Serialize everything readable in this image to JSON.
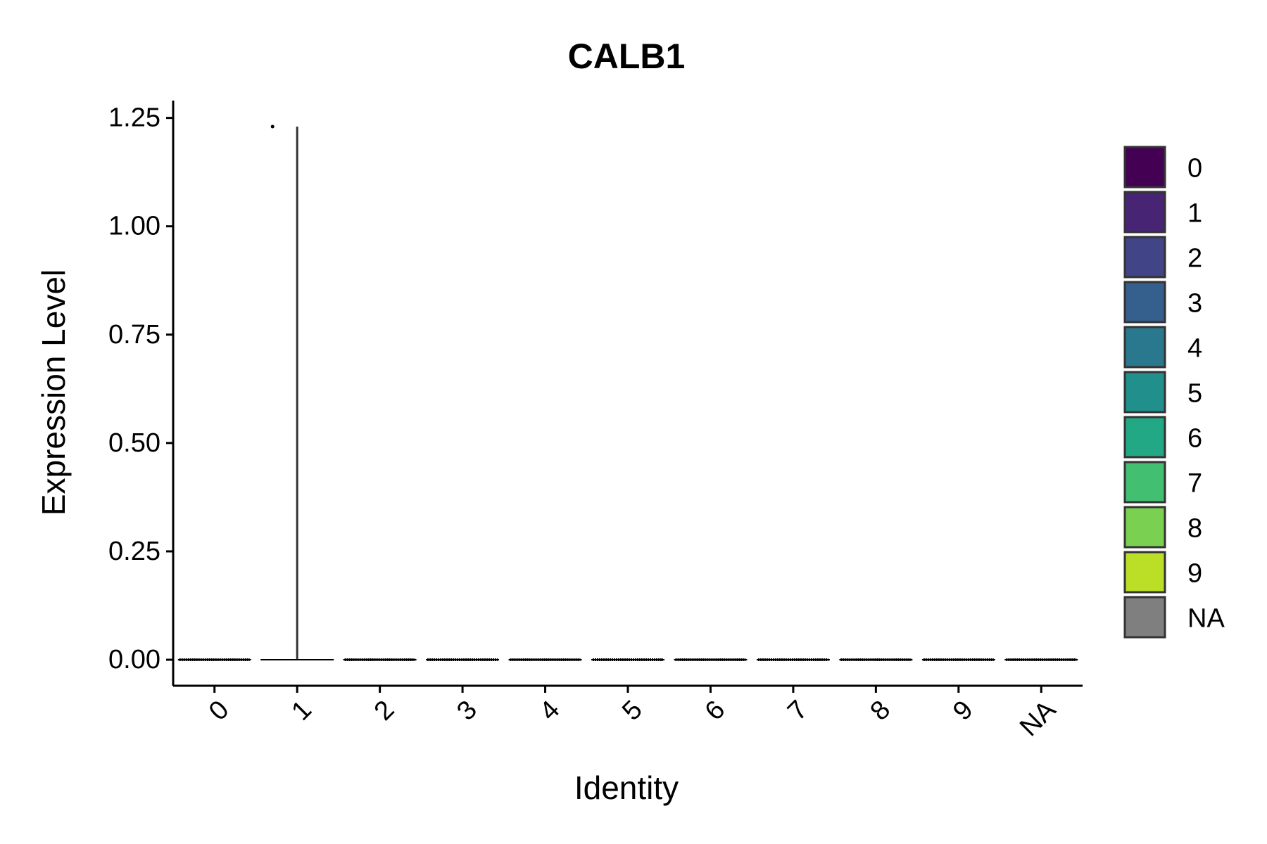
{
  "chart_data": {
    "type": "violin",
    "title": "CALB1",
    "xlabel": "Identity",
    "ylabel": "Expression Level",
    "categories": [
      "0",
      "1",
      "2",
      "3",
      "4",
      "5",
      "6",
      "7",
      "8",
      "9",
      "NA"
    ],
    "ylim": [
      -0.06,
      1.29
    ],
    "yticks": [
      0.0,
      0.25,
      0.5,
      0.75,
      1.0,
      1.25
    ],
    "ytick_labels": [
      "0.00",
      "0.25",
      "0.50",
      "0.75",
      "1.00",
      "1.25"
    ],
    "grid": false,
    "legend_position": "right",
    "series": [
      {
        "category": "0",
        "color": "#440154",
        "min": 0.0,
        "max": 0.0,
        "points": [
          0.0
        ]
      },
      {
        "category": "1",
        "color": "#482475",
        "min": 0.0,
        "max": 1.23,
        "points": [
          0.0,
          1.23
        ]
      },
      {
        "category": "2",
        "color": "#414487",
        "min": 0.0,
        "max": 0.0,
        "points": [
          0.0
        ]
      },
      {
        "category": "3",
        "color": "#355F8D",
        "min": 0.0,
        "max": 0.0,
        "points": [
          0.0
        ]
      },
      {
        "category": "4",
        "color": "#2A788E",
        "min": 0.0,
        "max": 0.0,
        "points": [
          0.0
        ]
      },
      {
        "category": "5",
        "color": "#21908C",
        "min": 0.0,
        "max": 0.0,
        "points": [
          0.0
        ]
      },
      {
        "category": "6",
        "color": "#22A884",
        "min": 0.0,
        "max": 0.0,
        "points": [
          0.0
        ]
      },
      {
        "category": "7",
        "color": "#43BF71",
        "min": 0.0,
        "max": 0.0,
        "points": [
          0.0
        ]
      },
      {
        "category": "8",
        "color": "#7AD151",
        "min": 0.0,
        "max": 0.0,
        "points": [
          0.0
        ]
      },
      {
        "category": "9",
        "color": "#BBDF27",
        "min": 0.0,
        "max": 0.0,
        "points": [
          0.0
        ]
      },
      {
        "category": "NA",
        "color": "#7F7F7F",
        "min": 0.0,
        "max": 0.0,
        "points": [
          0.0
        ]
      }
    ],
    "legend": [
      {
        "label": "0",
        "color": "#440154"
      },
      {
        "label": "1",
        "color": "#482475"
      },
      {
        "label": "2",
        "color": "#414487"
      },
      {
        "label": "3",
        "color": "#355F8D"
      },
      {
        "label": "4",
        "color": "#2A788E"
      },
      {
        "label": "5",
        "color": "#21908C"
      },
      {
        "label": "6",
        "color": "#22A884"
      },
      {
        "label": "7",
        "color": "#43BF71"
      },
      {
        "label": "8",
        "color": "#7AD151"
      },
      {
        "label": "9",
        "color": "#BBDF27"
      },
      {
        "label": "NA",
        "color": "#7F7F7F"
      }
    ]
  }
}
